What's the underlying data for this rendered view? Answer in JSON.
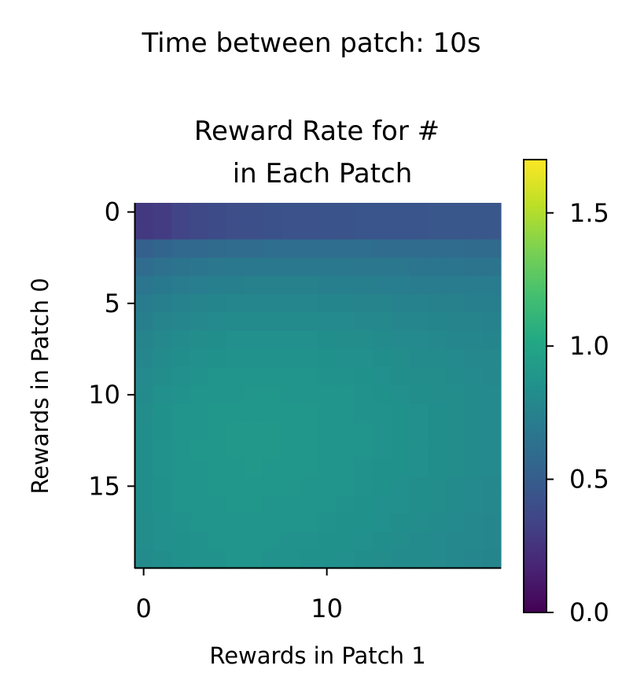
{
  "chart_data": {
    "type": "heatmap",
    "suptitle": "Time between patch: 10s",
    "title_lines": [
      "Reward Rate for #",
      "in Each Patch"
    ],
    "xlabel": "Rewards in Patch 1",
    "ylabel": "Rewards in Patch 0",
    "x_ticks": [
      0,
      10
    ],
    "y_ticks": [
      0,
      5,
      10,
      15
    ],
    "rows": 20,
    "cols": 20,
    "colorbar": {
      "min": 0.0,
      "max": 1.7,
      "ticks": [
        "0.0",
        "0.5",
        "1.0",
        "1.5"
      ],
      "colormap": "viridis"
    },
    "values": [
      [
        0.28,
        0.3,
        0.34,
        0.37,
        0.39,
        0.4,
        0.41,
        0.42,
        0.43,
        0.43,
        0.44,
        0.44,
        0.45,
        0.45,
        0.45,
        0.45,
        0.46,
        0.46,
        0.46,
        0.46
      ],
      [
        0.28,
        0.3,
        0.34,
        0.37,
        0.39,
        0.4,
        0.41,
        0.42,
        0.43,
        0.43,
        0.44,
        0.44,
        0.45,
        0.45,
        0.45,
        0.45,
        0.46,
        0.46,
        0.46,
        0.46
      ],
      [
        0.52,
        0.55,
        0.57,
        0.58,
        0.59,
        0.6,
        0.6,
        0.61,
        0.61,
        0.61,
        0.61,
        0.61,
        0.61,
        0.6,
        0.6,
        0.6,
        0.6,
        0.6,
        0.59,
        0.59
      ],
      [
        0.6,
        0.63,
        0.65,
        0.66,
        0.67,
        0.68,
        0.68,
        0.68,
        0.68,
        0.68,
        0.68,
        0.68,
        0.67,
        0.67,
        0.67,
        0.66,
        0.66,
        0.66,
        0.65,
        0.65
      ],
      [
        0.66,
        0.69,
        0.71,
        0.72,
        0.73,
        0.73,
        0.74,
        0.74,
        0.74,
        0.74,
        0.73,
        0.73,
        0.73,
        0.72,
        0.72,
        0.71,
        0.71,
        0.7,
        0.7,
        0.7
      ],
      [
        0.7,
        0.73,
        0.75,
        0.76,
        0.77,
        0.78,
        0.78,
        0.78,
        0.78,
        0.78,
        0.77,
        0.77,
        0.76,
        0.76,
        0.75,
        0.75,
        0.74,
        0.74,
        0.73,
        0.73
      ],
      [
        0.73,
        0.76,
        0.78,
        0.79,
        0.8,
        0.81,
        0.81,
        0.81,
        0.81,
        0.81,
        0.8,
        0.8,
        0.79,
        0.79,
        0.78,
        0.78,
        0.77,
        0.76,
        0.76,
        0.75
      ],
      [
        0.76,
        0.79,
        0.81,
        0.82,
        0.83,
        0.84,
        0.84,
        0.84,
        0.84,
        0.84,
        0.83,
        0.82,
        0.82,
        0.81,
        0.8,
        0.8,
        0.79,
        0.78,
        0.78,
        0.77
      ],
      [
        0.78,
        0.81,
        0.83,
        0.84,
        0.85,
        0.86,
        0.86,
        0.86,
        0.86,
        0.86,
        0.85,
        0.84,
        0.84,
        0.83,
        0.82,
        0.81,
        0.81,
        0.8,
        0.79,
        0.79
      ],
      [
        0.8,
        0.82,
        0.84,
        0.86,
        0.87,
        0.87,
        0.87,
        0.87,
        0.87,
        0.87,
        0.86,
        0.86,
        0.85,
        0.84,
        0.83,
        0.82,
        0.82,
        0.81,
        0.8,
        0.79
      ],
      [
        0.81,
        0.84,
        0.86,
        0.87,
        0.88,
        0.88,
        0.89,
        0.89,
        0.88,
        0.88,
        0.87,
        0.87,
        0.86,
        0.85,
        0.84,
        0.83,
        0.82,
        0.82,
        0.81,
        0.8
      ],
      [
        0.82,
        0.85,
        0.87,
        0.88,
        0.89,
        0.89,
        0.89,
        0.89,
        0.89,
        0.89,
        0.88,
        0.87,
        0.86,
        0.86,
        0.85,
        0.84,
        0.83,
        0.82,
        0.81,
        0.8
      ],
      [
        0.83,
        0.85,
        0.87,
        0.88,
        0.89,
        0.9,
        0.9,
        0.9,
        0.89,
        0.89,
        0.88,
        0.88,
        0.87,
        0.86,
        0.85,
        0.84,
        0.83,
        0.82,
        0.81,
        0.8
      ],
      [
        0.83,
        0.86,
        0.87,
        0.89,
        0.89,
        0.9,
        0.9,
        0.9,
        0.89,
        0.89,
        0.88,
        0.88,
        0.87,
        0.86,
        0.85,
        0.84,
        0.83,
        0.82,
        0.81,
        0.8
      ],
      [
        0.83,
        0.86,
        0.87,
        0.88,
        0.89,
        0.89,
        0.9,
        0.89,
        0.89,
        0.89,
        0.88,
        0.87,
        0.86,
        0.85,
        0.85,
        0.84,
        0.83,
        0.82,
        0.81,
        0.8
      ],
      [
        0.83,
        0.85,
        0.87,
        0.88,
        0.89,
        0.89,
        0.89,
        0.89,
        0.89,
        0.88,
        0.87,
        0.87,
        0.86,
        0.85,
        0.84,
        0.83,
        0.82,
        0.81,
        0.8,
        0.79
      ],
      [
        0.83,
        0.85,
        0.87,
        0.88,
        0.88,
        0.89,
        0.89,
        0.88,
        0.88,
        0.88,
        0.87,
        0.86,
        0.85,
        0.84,
        0.84,
        0.83,
        0.82,
        0.81,
        0.8,
        0.79
      ],
      [
        0.82,
        0.84,
        0.86,
        0.87,
        0.88,
        0.88,
        0.88,
        0.88,
        0.87,
        0.87,
        0.86,
        0.85,
        0.85,
        0.84,
        0.83,
        0.82,
        0.81,
        0.8,
        0.79,
        0.78
      ],
      [
        0.82,
        0.84,
        0.85,
        0.86,
        0.87,
        0.87,
        0.87,
        0.87,
        0.86,
        0.86,
        0.85,
        0.85,
        0.84,
        0.83,
        0.82,
        0.81,
        0.8,
        0.79,
        0.79,
        0.78
      ],
      [
        0.81,
        0.83,
        0.85,
        0.86,
        0.86,
        0.87,
        0.87,
        0.86,
        0.86,
        0.85,
        0.85,
        0.84,
        0.83,
        0.82,
        0.81,
        0.81,
        0.8,
        0.79,
        0.78,
        0.77
      ]
    ]
  }
}
